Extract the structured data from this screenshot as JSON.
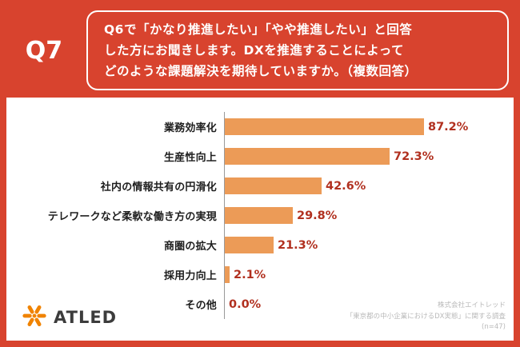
{
  "header": {
    "q_label": "Q7",
    "question_lines": [
      "Q6で「かなり推進したい」「やや推進したい」と回答",
      "した方にお聞きします。DXを推進することによって",
      "どのような課題解決を期待していますか。（複数回答）"
    ]
  },
  "chart_data": {
    "type": "bar",
    "orientation": "horizontal",
    "title": "",
    "categories": [
      "業務効率化",
      "生産性向上",
      "社内の情報共有の円滑化",
      "テレワークなど柔軟な働き方の実現",
      "商圏の拡大",
      "採用力向上",
      "その他"
    ],
    "values": [
      87.2,
      72.3,
      42.6,
      29.8,
      21.3,
      2.1,
      0.0
    ],
    "value_labels": [
      "87.2%",
      "72.3%",
      "42.6%",
      "29.8%",
      "21.3%",
      "2.1%",
      "0.0%"
    ],
    "xlim": [
      0,
      100
    ],
    "grid": false,
    "legend": "none",
    "bar_color": "#ec9b57",
    "value_label_color": "#b1301f"
  },
  "logo": {
    "text": "ATLED",
    "icon_color": "#f08300"
  },
  "source": {
    "lines": [
      "株式会社エイトレッド",
      "「東京都の中小企業におけるDX実態」に関する調査",
      "(n=47)"
    ]
  },
  "colors": {
    "background": "#d8432e",
    "panel": "#ffffff",
    "axis": "#9a9a9a"
  }
}
